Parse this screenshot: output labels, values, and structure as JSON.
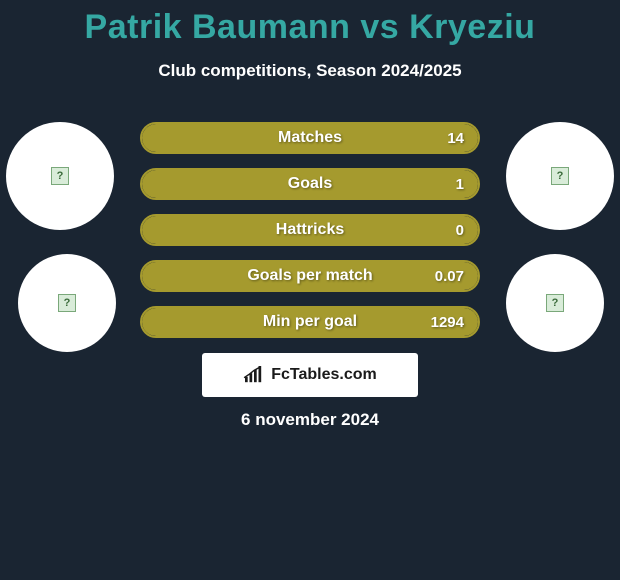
{
  "title": {
    "text": "Patrik Baumann vs Kryeziu",
    "color": "#35a8a3",
    "fontsize": 34,
    "fontweight": 900
  },
  "subtitle": {
    "text": "Club competitions, Season 2024/2025",
    "color": "#ffffff",
    "fontsize": 17,
    "fontweight": 700
  },
  "background_color": "#1a2532",
  "bars": {
    "border_color": "#a59a2e",
    "fill_color": "#a59a2e",
    "height": 32,
    "radius": 16,
    "gap": 14,
    "label_fontsize": 16,
    "value_fontsize": 15,
    "items": [
      {
        "label": "Matches",
        "value": "14",
        "fill_pct": 100
      },
      {
        "label": "Goals",
        "value": "1",
        "fill_pct": 100
      },
      {
        "label": "Hattricks",
        "value": "0",
        "fill_pct": 100
      },
      {
        "label": "Goals per match",
        "value": "0.07",
        "fill_pct": 100
      },
      {
        "label": "Min per goal",
        "value": "1294",
        "fill_pct": 100
      }
    ]
  },
  "circles": {
    "bg_color": "#ffffff",
    "large_diameter": 108,
    "small_diameter": 98,
    "placeholder_icon": "broken-image"
  },
  "brand": {
    "text": "FcTables.com",
    "bg_color": "#ffffff",
    "text_color": "#1a1a1a",
    "fontsize": 16
  },
  "date": {
    "text": "6 november 2024",
    "color": "#ffffff",
    "fontsize": 17,
    "fontweight": 700
  }
}
